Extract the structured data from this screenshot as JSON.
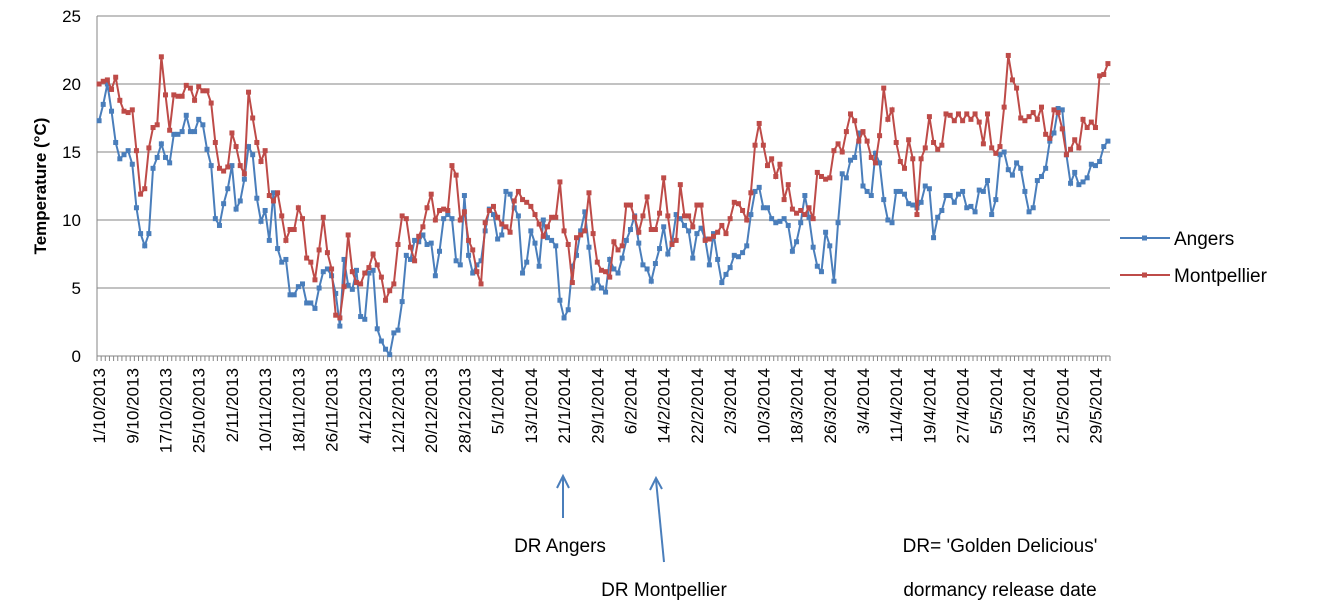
{
  "chart_data": {
    "type": "line",
    "y_label": "Temperature (°C)",
    "ylim": [
      0,
      25
    ],
    "yticks": [
      0,
      5,
      10,
      15,
      20,
      25
    ],
    "grid": true,
    "legend": "right",
    "categories": [
      "1/10/2013",
      null,
      null,
      null,
      null,
      null,
      null,
      null,
      "9/10/2013",
      null,
      null,
      null,
      null,
      null,
      null,
      null,
      "17/10/2013",
      null,
      null,
      null,
      null,
      null,
      null,
      null,
      "25/10/2013",
      null,
      null,
      null,
      null,
      null,
      null,
      null,
      "2/11/2013",
      null,
      null,
      null,
      null,
      null,
      null,
      null,
      "10/11/2013",
      null,
      null,
      null,
      null,
      null,
      null,
      null,
      "18/11/2013",
      null,
      null,
      null,
      null,
      null,
      null,
      null,
      "26/11/2013",
      null,
      null,
      null,
      null,
      null,
      null,
      null,
      "4/12/2013",
      null,
      null,
      null,
      null,
      null,
      null,
      null,
      "12/12/2013",
      null,
      null,
      null,
      null,
      null,
      null,
      null,
      "20/12/2013",
      null,
      null,
      null,
      null,
      null,
      null,
      null,
      "28/12/2013",
      null,
      null,
      null,
      null,
      null,
      null,
      null,
      "5/1/2014",
      null,
      null,
      null,
      null,
      null,
      null,
      null,
      "13/1/2014",
      null,
      null,
      null,
      null,
      null,
      null,
      null,
      "21/1/2014",
      null,
      null,
      null,
      null,
      null,
      null,
      null,
      "29/1/2014",
      null,
      null,
      null,
      null,
      null,
      null,
      null,
      "6/2/2014",
      null,
      null,
      null,
      null,
      null,
      null,
      null,
      "14/2/2014",
      null,
      null,
      null,
      null,
      null,
      null,
      null,
      "22/2/2014",
      null,
      null,
      null,
      null,
      null,
      null,
      null,
      "2/3/2014",
      null,
      null,
      null,
      null,
      null,
      null,
      null,
      "10/3/2014",
      null,
      null,
      null,
      null,
      null,
      null,
      null,
      "18/3/2014",
      null,
      null,
      null,
      null,
      null,
      null,
      null,
      "26/3/2014",
      null,
      null,
      null,
      null,
      null,
      null,
      null,
      "3/4/2014",
      null,
      null,
      null,
      null,
      null,
      null,
      null,
      "11/4/2014",
      null,
      null,
      null,
      null,
      null,
      null,
      null,
      "19/4/2014",
      null,
      null,
      null,
      null,
      null,
      null,
      null,
      "27/4/2014",
      null,
      null,
      null,
      null,
      null,
      null,
      null,
      "5/5/2014",
      null,
      null,
      null,
      null,
      null,
      null,
      null,
      "13/5/2014",
      null,
      null,
      null,
      null,
      null,
      null,
      null,
      "21/5/2014",
      null,
      null,
      null,
      null,
      null,
      null,
      null,
      "29/5/2014",
      null,
      null,
      null
    ],
    "series": [
      {
        "name": "Angers",
        "color": "#4a7ebb",
        "values": [
          17.3,
          18.5,
          20.0,
          18.0,
          15.7,
          14.5,
          14.8,
          15.1,
          14.1,
          10.9,
          9.0,
          8.1,
          9.0,
          13.8,
          14.6,
          15.6,
          14.6,
          14.2,
          16.3,
          16.3,
          16.5,
          17.7,
          16.5,
          16.5,
          17.4,
          17.0,
          15.2,
          14.0,
          10.1,
          9.6,
          11.2,
          12.3,
          14.0,
          10.8,
          11.4,
          13.0,
          15.4,
          14.8,
          11.6,
          9.9,
          10.7,
          8.5,
          12.0,
          7.9,
          6.9,
          7.1,
          4.5,
          4.5,
          5.1,
          5.3,
          3.9,
          3.9,
          3.5,
          5.0,
          6.2,
          6.4,
          5.9,
          4.6,
          2.2,
          7.1,
          5.2,
          4.9,
          6.3,
          2.9,
          2.7,
          6.1,
          6.3,
          2.0,
          1.1,
          0.5,
          0.1,
          1.7,
          1.9,
          4.0,
          7.4,
          7.1,
          8.5,
          8.4,
          8.9,
          8.2,
          8.3,
          5.9,
          7.7,
          10.1,
          10.4,
          10.1,
          7.0,
          6.7,
          11.8,
          7.4,
          6.1,
          6.7,
          7.0,
          9.2,
          10.8,
          10.4,
          8.6,
          8.9,
          12.1,
          11.9,
          10.9,
          10.3,
          6.1,
          6.9,
          9.2,
          8.3,
          6.6,
          10.0,
          8.7,
          8.5,
          8.1,
          4.1,
          2.8,
          3.4,
          6.6,
          7.4,
          9.2,
          10.6,
          8.0,
          5.0,
          5.6,
          5.0,
          4.7,
          7.1,
          6.4,
          6.1,
          7.2,
          8.5,
          9.3,
          10.3,
          8.3,
          6.7,
          6.4,
          5.5,
          6.8,
          7.9,
          9.5,
          7.5,
          8.3,
          10.4,
          10.1,
          9.6,
          9.2,
          7.2,
          9.0,
          9.4,
          8.6,
          6.7,
          9.0,
          7.1,
          5.4,
          6.0,
          6.5,
          7.4,
          7.3,
          7.6,
          8.1,
          10.4,
          12.1,
          12.4,
          10.9,
          10.9,
          10.1,
          9.8,
          9.9,
          10.1,
          9.6,
          7.7,
          8.4,
          9.8,
          11.8,
          10.2,
          8.0,
          6.6,
          6.2,
          9.1,
          8.1,
          5.5,
          9.8,
          13.4,
          13.1,
          14.4,
          14.6,
          16.4,
          12.5,
          12.1,
          11.8,
          14.9,
          14.2,
          11.5,
          10.0,
          9.8,
          12.1,
          12.1,
          11.9,
          11.2,
          11.1,
          10.9,
          11.3,
          12.5,
          12.3,
          8.7,
          10.2,
          10.7,
          11.8,
          11.8,
          11.3,
          11.9,
          12.1,
          10.9,
          11.0,
          10.6,
          12.2,
          12.1,
          12.9,
          10.4,
          11.5,
          14.8,
          15.0,
          13.7,
          13.3,
          14.2,
          13.8,
          12.1,
          10.6,
          10.9,
          12.9,
          13.2,
          13.8,
          15.8,
          16.4,
          18.2,
          18.1,
          14.8,
          12.7,
          13.5,
          12.6,
          12.8,
          13.1,
          14.1,
          14.0,
          14.3,
          15.4,
          15.8
        ]
      },
      {
        "name": "Montpellier",
        "color": "#be4b48",
        "values": [
          20.0,
          20.2,
          20.3,
          19.6,
          20.5,
          18.8,
          18.0,
          17.9,
          18.1,
          15.1,
          11.9,
          12.3,
          15.3,
          16.8,
          17.0,
          22.0,
          19.2,
          16.6,
          19.2,
          19.1,
          19.1,
          19.9,
          19.7,
          18.8,
          19.8,
          19.5,
          19.5,
          18.6,
          15.7,
          13.8,
          13.6,
          13.9,
          16.4,
          15.4,
          14.0,
          13.4,
          19.4,
          17.5,
          15.7,
          14.3,
          15.1,
          11.8,
          11.4,
          12.0,
          10.3,
          8.5,
          9.3,
          9.3,
          10.9,
          10.1,
          7.2,
          6.9,
          5.6,
          7.8,
          10.2,
          7.6,
          6.4,
          3.0,
          2.8,
          5.1,
          8.9,
          6.2,
          5.4,
          5.3,
          6.1,
          6.5,
          7.5,
          6.7,
          5.8,
          4.1,
          4.8,
          5.3,
          8.2,
          10.3,
          10.1,
          8.0,
          7.0,
          8.8,
          9.5,
          10.9,
          11.9,
          10.0,
          10.7,
          10.8,
          10.7,
          14.0,
          13.3,
          10.0,
          10.6,
          8.5,
          7.8,
          6.2,
          5.3,
          9.8,
          10.7,
          11.0,
          10.2,
          9.7,
          9.5,
          9.1,
          11.4,
          12.1,
          11.5,
          11.3,
          11.0,
          10.4,
          9.7,
          8.8,
          9.5,
          10.2,
          10.2,
          12.8,
          9.2,
          8.2,
          5.4,
          8.7,
          8.9,
          9.2,
          12.0,
          9.0,
          6.9,
          6.3,
          6.2,
          5.8,
          8.4,
          7.8,
          8.1,
          11.1,
          11.1,
          10.2,
          9.1,
          10.3,
          11.7,
          9.3,
          9.3,
          10.5,
          13.1,
          10.3,
          8.2,
          8.5,
          12.6,
          10.3,
          10.3,
          9.5,
          11.1,
          11.1,
          8.5,
          8.6,
          8.8,
          9.1,
          9.6,
          9.0,
          10.1,
          11.3,
          11.2,
          10.7,
          10.0,
          12.0,
          15.5,
          17.1,
          15.5,
          14.0,
          14.5,
          13.2,
          14.1,
          11.5,
          12.6,
          10.8,
          10.5,
          10.7,
          10.4,
          10.9,
          10.1,
          13.5,
          13.2,
          13.0,
          13.1,
          15.1,
          15.6,
          15.0,
          16.5,
          17.8,
          17.3,
          15.8,
          16.5,
          15.8,
          14.6,
          14.2,
          16.2,
          19.7,
          17.4,
          18.1,
          15.7,
          14.3,
          13.8,
          15.9,
          14.5,
          10.4,
          14.5,
          15.3,
          17.6,
          15.7,
          15.2,
          15.5,
          17.8,
          17.7,
          17.3,
          17.8,
          17.3,
          17.8,
          17.4,
          17.8,
          17.2,
          15.6,
          17.8,
          15.3,
          14.9,
          15.4,
          18.3,
          22.1,
          20.3,
          19.7,
          17.5,
          17.3,
          17.6,
          17.9,
          17.4,
          18.3,
          16.3,
          16.0,
          18.1,
          17.9,
          16.7,
          14.8,
          15.2,
          15.9,
          15.3,
          17.4,
          16.8,
          17.2,
          16.8,
          20.6,
          20.7,
          21.5
        ]
      }
    ],
    "annotations": [
      "DR Angers",
      "DR Montpellier",
      "DR= 'Golden Delicious'",
      "dormancy release date"
    ]
  }
}
